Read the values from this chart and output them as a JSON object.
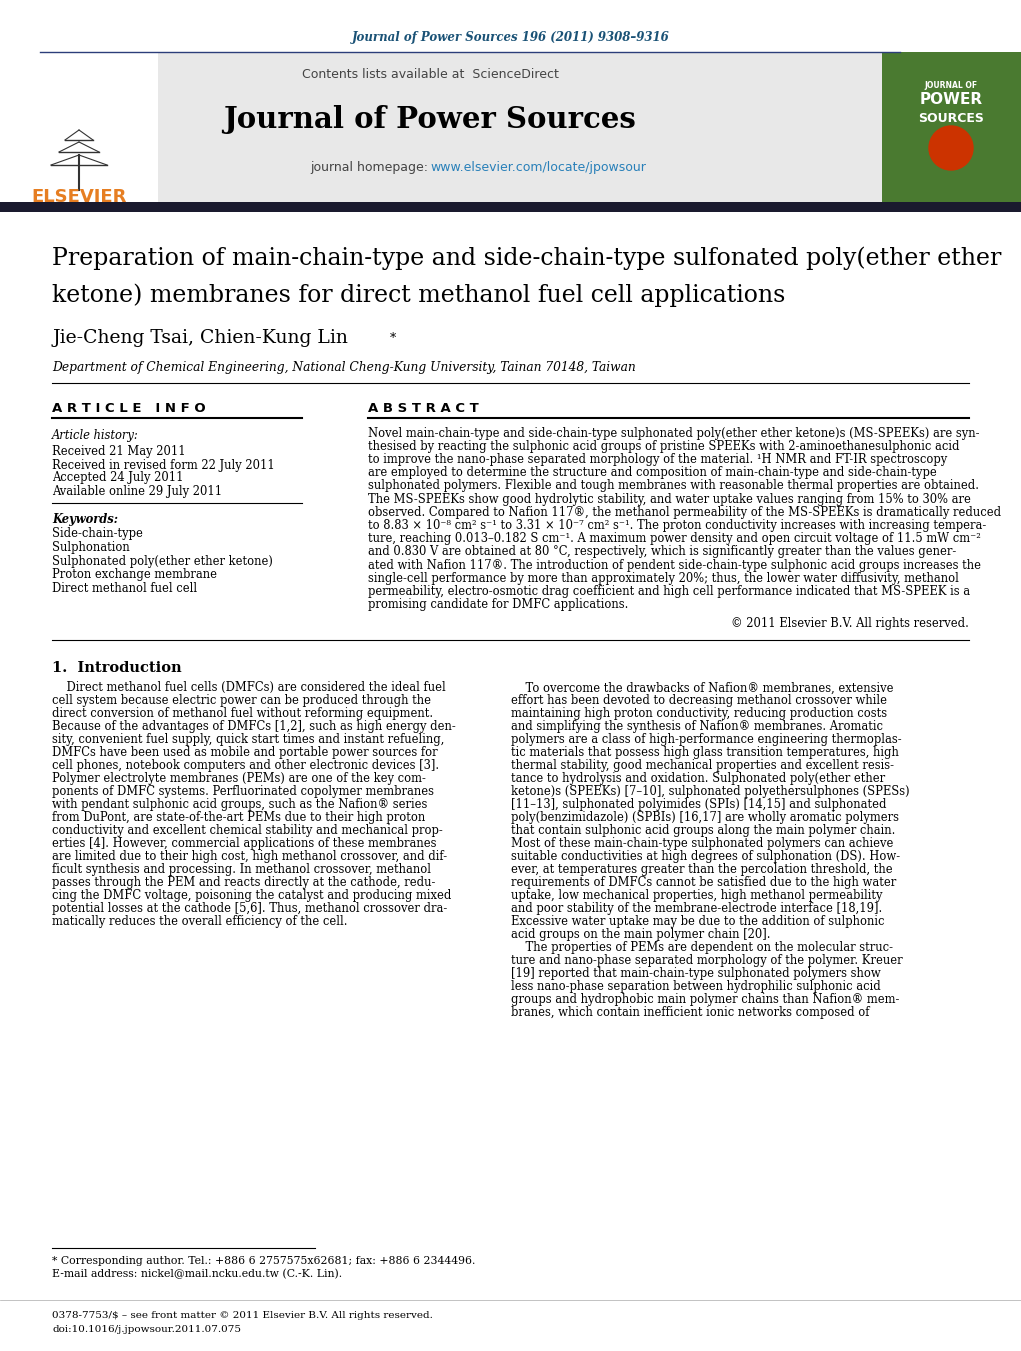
{
  "background_color": "#ffffff",
  "journal_ref": "Journal of Power Sources 196 (2011) 9308–9316",
  "journal_ref_color": "#1a5276",
  "contents_line": "Contents lists available at",
  "sciencedirect_color": "#2980b9",
  "journal_name": "Journal of Power Sources",
  "journal_homepage_prefix": "journal homepage: ",
  "journal_url": "www.elsevier.com/locate/jpowsour",
  "journal_url_color": "#2980b9",
  "header_bg": "#e8e8e8",
  "dark_bar_color": "#1a1a2e",
  "affiliation": "Department of Chemical Engineering, National Cheng-Kung University, Tainan 70148, Taiwan",
  "article_info_header": "A R T I C L E   I N F O",
  "abstract_header": "A B S T R A C T",
  "article_history_label": "Article history:",
  "received": "Received 21 May 2011",
  "received_revised": "Received in revised form 22 July 2011",
  "accepted": "Accepted 24 July 2011",
  "available": "Available online 29 July 2011",
  "keywords_label": "Keywords:",
  "keywords": [
    "Side-chain-type",
    "Sulphonation",
    "Sulphonated poly(ether ether ketone)",
    "Proton exchange membrane",
    "Direct methanol fuel cell"
  ],
  "copyright": "© 2011 Elsevier B.V. All rights reserved.",
  "section1_header": "1.  Introduction",
  "footnote_star": "* Corresponding author. Tel.: +886 6 2757575x62681; fax: +886 6 2344496.",
  "footnote_email": "E-mail address: nickel@mail.ncku.edu.tw (C.-K. Lin).",
  "footer_issn": "0378-7753/$ – see front matter © 2011 Elsevier B.V. All rights reserved.",
  "footer_doi": "doi:10.1016/j.jpowsour.2011.07.075",
  "elsevier_color": "#e67e22",
  "line_color": "#2c3e7a",
  "cover_green": "#4a7a30",
  "abstract_lines": [
    "Novel main-chain-type and side-chain-type sulphonated poly(ether ether ketone)s (MS-SPEEKs) are syn-",
    "thesised by reacting the sulphonic acid groups of pristine SPEEKs with 2-aminoethanesulphonic acid",
    "to improve the nano-phase separated morphology of the material. ¹H NMR and FT-IR spectroscopy",
    "are employed to determine the structure and composition of main-chain-type and side-chain-type",
    "sulphonated polymers. Flexible and tough membranes with reasonable thermal properties are obtained.",
    "The MS-SPEEKs show good hydrolytic stability, and water uptake values ranging from 15% to 30% are",
    "observed. Compared to Nafion 117®, the methanol permeability of the MS-SPEEKs is dramatically reduced",
    "to 8.83 × 10⁻⁸ cm² s⁻¹ to 3.31 × 10⁻⁷ cm² s⁻¹. The proton conductivity increases with increasing tempera-",
    "ture, reaching 0.013–0.182 S cm⁻¹. A maximum power density and open circuit voltage of 11.5 mW cm⁻²",
    "and 0.830 V are obtained at 80 °C, respectively, which is significantly greater than the values gener-",
    "ated with Nafion 117®. The introduction of pendent side-chain-type sulphonic acid groups increases the",
    "single-cell performance by more than approximately 20%; thus, the lower water diffusivity, methanol",
    "permeability, electro-osmotic drag coefficient and high cell performance indicated that MS-SPEEK is a",
    "promising candidate for DMFC applications."
  ],
  "col1_lines": [
    "    Direct methanol fuel cells (DMFCs) are considered the ideal fuel",
    "cell system because electric power can be produced through the",
    "direct conversion of methanol fuel without reforming equipment.",
    "Because of the advantages of DMFCs [1,2], such as high energy den-",
    "sity, convenient fuel supply, quick start times and instant refueling,",
    "DMFCs have been used as mobile and portable power sources for",
    "cell phones, notebook computers and other electronic devices [3].",
    "Polymer electrolyte membranes (PEMs) are one of the key com-",
    "ponents of DMFC systems. Perfluorinated copolymer membranes",
    "with pendant sulphonic acid groups, such as the Nafion® series",
    "from DuPont, are state-of-the-art PEMs due to their high proton",
    "conductivity and excellent chemical stability and mechanical prop-",
    "erties [4]. However, commercial applications of these membranes",
    "are limited due to their high cost, high methanol crossover, and dif-",
    "ficult synthesis and processing. In methanol crossover, methanol",
    "passes through the PEM and reacts directly at the cathode, redu-",
    "cing the DMFC voltage, poisoning the catalyst and producing mixed",
    "potential losses at the cathode [5,6]. Thus, methanol crossover dra-",
    "matically reduces the overall efficiency of the cell."
  ],
  "col2_lines": [
    "    To overcome the drawbacks of Nafion® membranes, extensive",
    "effort has been devoted to decreasing methanol crossover while",
    "maintaining high proton conductivity, reducing production costs",
    "and simplifying the synthesis of Nafion® membranes. Aromatic",
    "polymers are a class of high-performance engineering thermoplas-",
    "tic materials that possess high glass transition temperatures, high",
    "thermal stability, good mechanical properties and excellent resis-",
    "tance to hydrolysis and oxidation. Sulphonated poly(ether ether",
    "ketone)s (SPEEKs) [7–10], sulphonated polyethersulphones (SPESs)",
    "[11–13], sulphonated polyimides (SPIs) [14,15] and sulphonated",
    "poly(benzimidazole) (SPBIs) [16,17] are wholly aromatic polymers",
    "that contain sulphonic acid groups along the main polymer chain.",
    "Most of these main-chain-type sulphonated polymers can achieve",
    "suitable conductivities at high degrees of sulphonation (DS). How-",
    "ever, at temperatures greater than the percolation threshold, the",
    "requirements of DMFCs cannot be satisfied due to the high water",
    "uptake, low mechanical properties, high methanol permeability",
    "and poor stability of the membrane-electrode interface [18,19].",
    "Excessive water uptake may be due to the addition of sulphonic",
    "acid groups on the main polymer chain [20].",
    "    The properties of PEMs are dependent on the molecular struc-",
    "ture and nano-phase separated morphology of the polymer. Kreuer",
    "[19] reported that main-chain-type sulphonated polymers show",
    "less nano-phase separation between hydrophilic sulphonic acid",
    "groups and hydrophobic main polymer chains than Nafion® mem-",
    "branes, which contain inefficient ionic networks composed of"
  ]
}
